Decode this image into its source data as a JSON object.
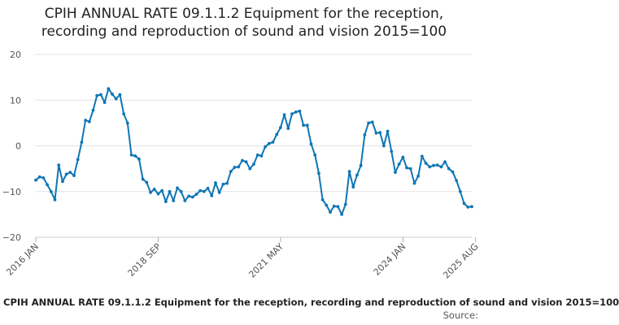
{
  "chart_data": {
    "type": "line",
    "title_line1": "CPIH ANNUAL RATE 09.1.1.2 Equipment for the reception,",
    "title_line2": "recording and reproduction of sound and vision 2015=100",
    "ylim": [
      -20,
      20
    ],
    "y_ticks": [
      "20",
      "10",
      "0",
      "−10",
      "−20"
    ],
    "y_tick_values": [
      20,
      10,
      0,
      -10,
      -20
    ],
    "x_ticks": [
      {
        "label": "2016 JAN",
        "index": 0
      },
      {
        "label": "2018 SEP",
        "index": 32
      },
      {
        "label": "2021 MAY",
        "index": 64
      },
      {
        "label": "2024 JAN",
        "index": 96
      },
      {
        "label": "2025 AUG",
        "index": 115
      }
    ],
    "grid": true,
    "series": [
      {
        "name": "CPIH ANNUAL RATE 09.1.1.2 Equipment for the reception, recording and reproduction of sound and vision 2015=100",
        "color": "#0f76b5",
        "values": [
          -7.5,
          -6.8,
          -7.0,
          -8.5,
          -10.0,
          -11.8,
          -4.2,
          -7.8,
          -6.2,
          -5.8,
          -6.5,
          -3.0,
          0.8,
          5.6,
          5.3,
          7.8,
          11.0,
          11.2,
          9.5,
          12.5,
          11.3,
          10.3,
          11.2,
          7.0,
          5.0,
          -2.0,
          -2.2,
          -2.9,
          -7.3,
          -8.0,
          -10.2,
          -9.5,
          -10.5,
          -9.8,
          -12.2,
          -10.0,
          -12.0,
          -9.2,
          -10.0,
          -12.0,
          -11.0,
          -11.2,
          -10.6,
          -9.8,
          -10.0,
          -9.3,
          -10.9,
          -8.1,
          -10.2,
          -8.4,
          -8.2,
          -5.6,
          -4.7,
          -4.6,
          -3.2,
          -3.5,
          -5.0,
          -4.0,
          -2.0,
          -2.2,
          -0.2,
          0.5,
          0.8,
          2.5,
          4.0,
          6.8,
          3.8,
          7.0,
          7.4,
          7.6,
          4.5,
          4.5,
          0.4,
          -2.0,
          -6.0,
          -11.8,
          -13.0,
          -14.5,
          -13.2,
          -13.3,
          -15.0,
          -12.8,
          -5.6,
          -9.0,
          -6.4,
          -4.3,
          2.4,
          5.0,
          5.2,
          2.8,
          2.9,
          0.0,
          3.2,
          -1.2,
          -5.8,
          -4.0,
          -2.5,
          -4.8,
          -5.0,
          -8.2,
          -6.6,
          -2.3,
          -3.8,
          -4.6,
          -4.3,
          -4.2,
          -4.6,
          -3.5,
          -5.0,
          -5.7,
          -7.6,
          -10.0,
          -12.6,
          -13.4,
          -13.3
        ]
      }
    ],
    "legend_text": "CPIH ANNUAL RATE 09.1.1.2 Equipment for the reception, recording and reproduction of sound and vision 2015=100",
    "source_label": "Source:"
  }
}
